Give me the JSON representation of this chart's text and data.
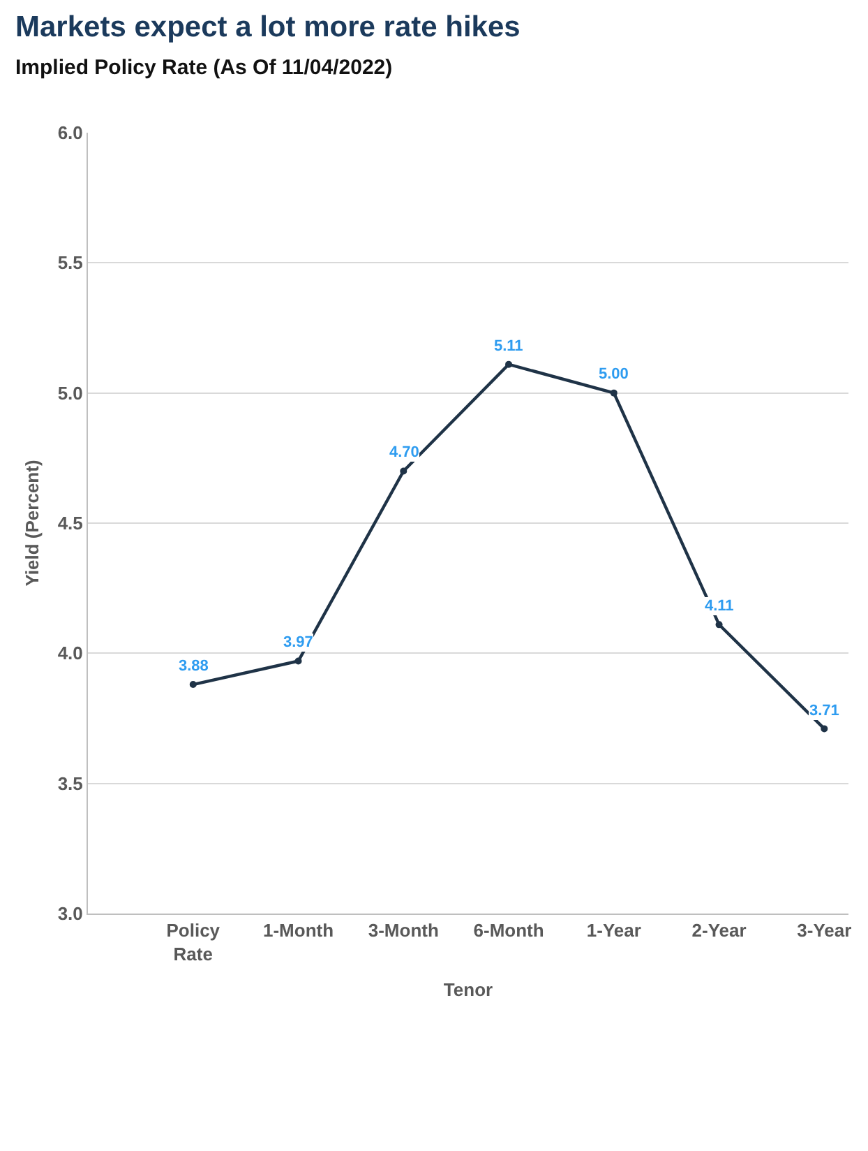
{
  "chart_data": {
    "type": "line",
    "title": "Markets expect a lot more rate hikes",
    "subtitle": "Implied Policy Rate (As Of 11/04/2022)",
    "xlabel": "Tenor",
    "ylabel": "Yield (Percent)",
    "categories": [
      "Policy\nRate",
      "1-Month",
      "3-Month",
      "6-Month",
      "1-Year",
      "2-Year",
      "3-Year"
    ],
    "series": [
      {
        "color": "#1f3347",
        "values": [
          3.88,
          3.97,
          4.7,
          5.11,
          5.0,
          4.11,
          3.71
        ],
        "value_labels": [
          "3.88",
          "3.97",
          "4.70",
          "5.11",
          "5.00",
          "4.11",
          "3.71"
        ]
      }
    ],
    "ylim": [
      3.0,
      6.0
    ],
    "yticks": [
      {
        "value": 3,
        "label": "3.0"
      },
      {
        "value": 3.5,
        "label": "3.5"
      },
      {
        "value": 4,
        "label": "4.0"
      },
      {
        "value": 4.5,
        "label": "4.5"
      },
      {
        "value": 5,
        "label": "5.0"
      },
      {
        "value": 5.5,
        "label": "5.5"
      },
      {
        "value": 6,
        "label": "6.0"
      }
    ],
    "grid": "y",
    "marker": "circle",
    "line_style": "solid"
  }
}
